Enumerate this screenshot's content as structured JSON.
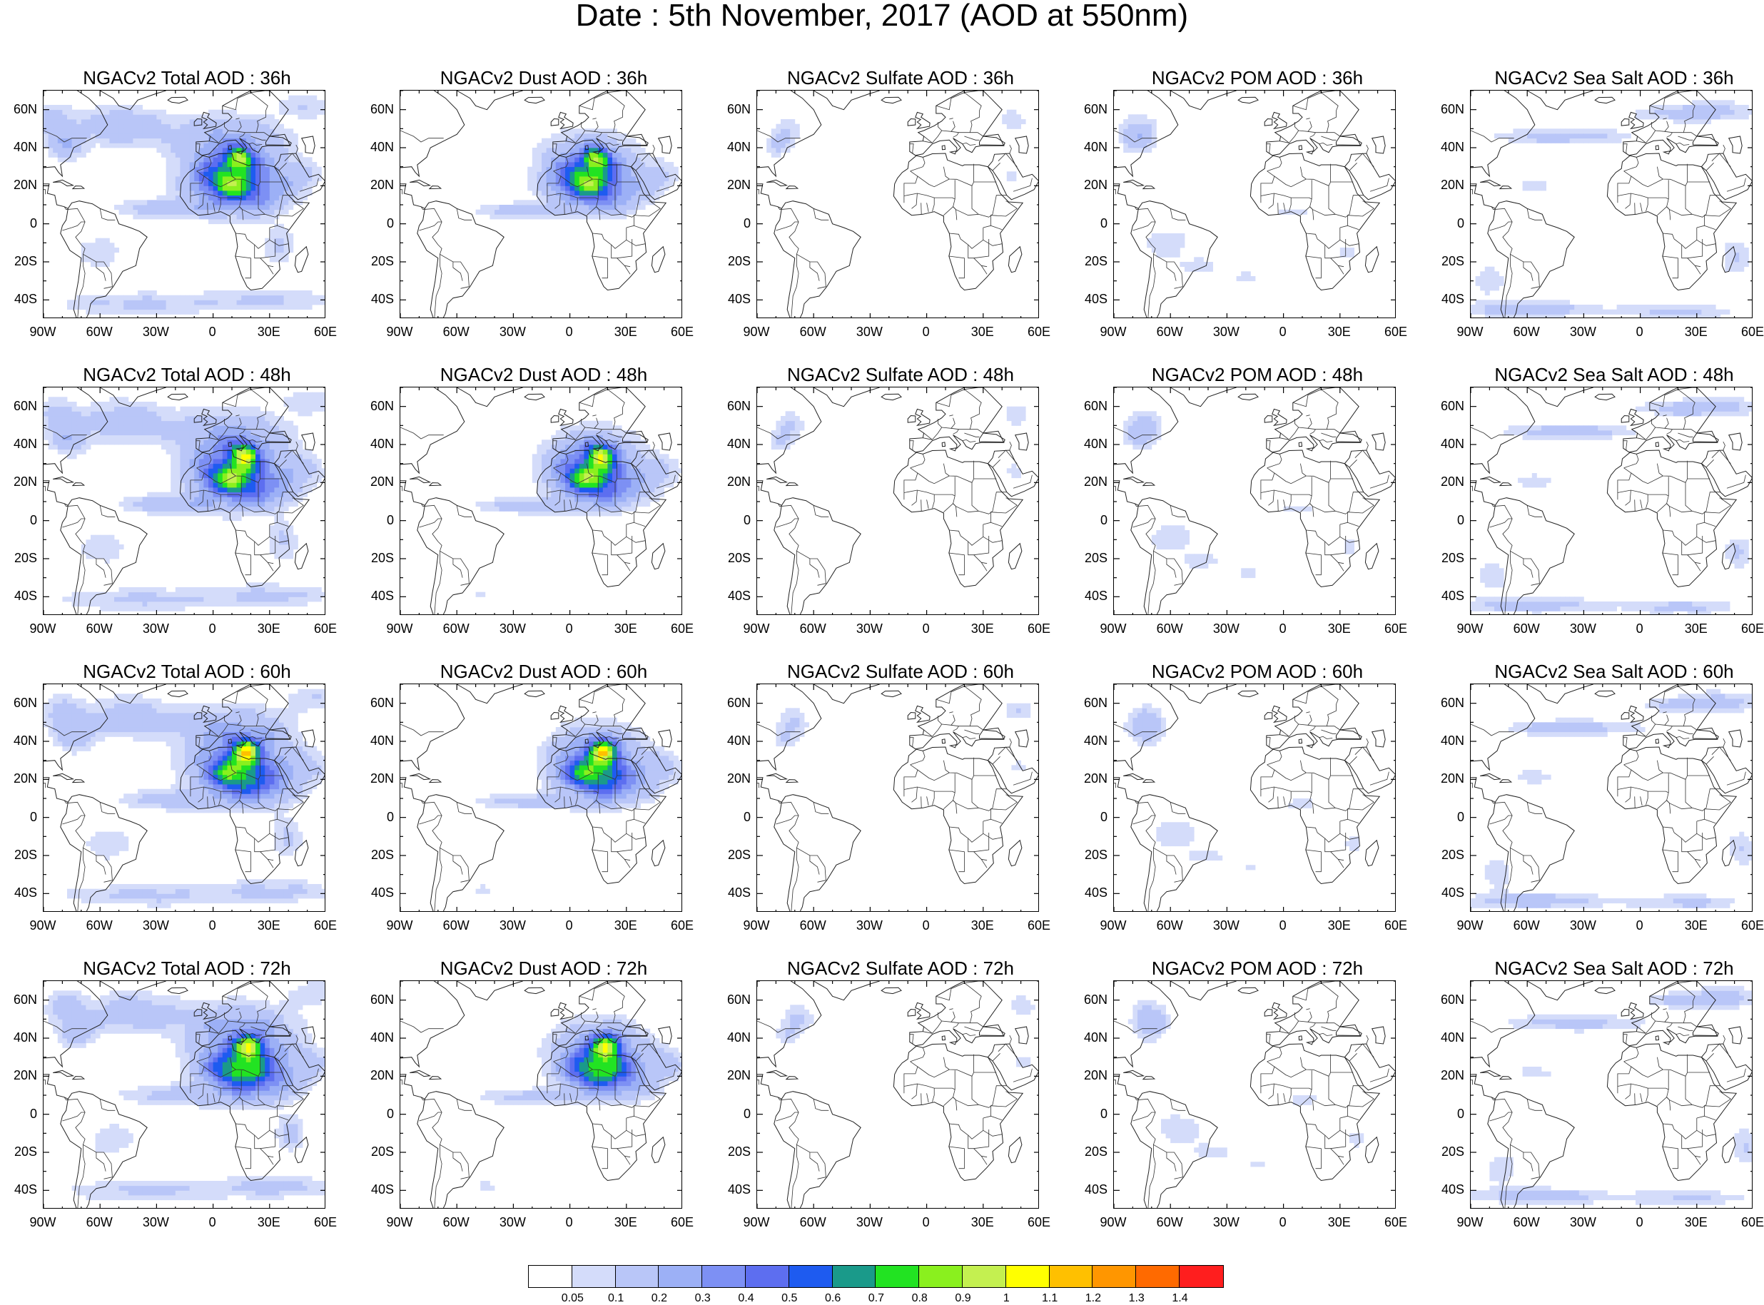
{
  "title": "Date : 5th November, 2017 (AOD at 550nm)",
  "panels": [
    {
      "title": "NGACv2 Total AOD : 36h",
      "species": "total",
      "hour": 36
    },
    {
      "title": "NGACv2 Dust AOD : 36h",
      "species": "dust",
      "hour": 36
    },
    {
      "title": "NGACv2 Sulfate AOD : 36h",
      "species": "sulfate",
      "hour": 36
    },
    {
      "title": "NGACv2 POM AOD : 36h",
      "species": "pom",
      "hour": 36
    },
    {
      "title": "NGACv2 Sea Salt AOD : 36h",
      "species": "seasalt",
      "hour": 36
    },
    {
      "title": "NGACv2 Total AOD : 48h",
      "species": "total",
      "hour": 48
    },
    {
      "title": "NGACv2 Dust AOD : 48h",
      "species": "dust",
      "hour": 48
    },
    {
      "title": "NGACv2 Sulfate AOD : 48h",
      "species": "sulfate",
      "hour": 48
    },
    {
      "title": "NGACv2 POM AOD : 48h",
      "species": "pom",
      "hour": 48
    },
    {
      "title": "NGACv2 Sea Salt AOD : 48h",
      "species": "seasalt",
      "hour": 48
    },
    {
      "title": "NGACv2 Total AOD : 60h",
      "species": "total",
      "hour": 60
    },
    {
      "title": "NGACv2 Dust AOD : 60h",
      "species": "dust",
      "hour": 60
    },
    {
      "title": "NGACv2 Sulfate AOD : 60h",
      "species": "sulfate",
      "hour": 60
    },
    {
      "title": "NGACv2 POM AOD : 60h",
      "species": "pom",
      "hour": 60
    },
    {
      "title": "NGACv2 Sea Salt AOD : 60h",
      "species": "seasalt",
      "hour": 60
    },
    {
      "title": "NGACv2 Total AOD : 72h",
      "species": "total",
      "hour": 72
    },
    {
      "title": "NGACv2 Dust AOD : 72h",
      "species": "dust",
      "hour": 72
    },
    {
      "title": "NGACv2 Sulfate AOD : 72h",
      "species": "sulfate",
      "hour": 72
    },
    {
      "title": "NGACv2 POM AOD : 72h",
      "species": "pom",
      "hour": 72
    },
    {
      "title": "NGACv2 Sea Salt  AOD : 72h",
      "species": "seasalt",
      "hour": 72
    }
  ],
  "lat_labels": [
    "60N",
    "40N",
    "20N",
    "0",
    "20S",
    "40S"
  ],
  "lat_values": [
    60,
    40,
    20,
    0,
    -20,
    -40
  ],
  "lon_labels": [
    "90W",
    "60W",
    "30W",
    "0",
    "30E",
    "60E"
  ],
  "lon_values": [
    -90,
    -60,
    -30,
    0,
    30,
    60
  ],
  "map_extent": {
    "lon_min": -90,
    "lon_max": 60,
    "lat_min": -50,
    "lat_max": 70
  },
  "colorbar": {
    "levels": [
      "0.05",
      "0.1",
      "0.2",
      "0.3",
      "0.4",
      "0.5",
      "0.6",
      "0.7",
      "0.8",
      "0.9",
      "1",
      "1.1",
      "1.2",
      "1.3",
      "1.4"
    ],
    "colors": [
      "#ffffff",
      "#d4dcfa",
      "#b9c6f8",
      "#9cb0f6",
      "#7d90f4",
      "#5d6ef0",
      "#1e5bf0",
      "#1a9a8a",
      "#22e322",
      "#8af01e",
      "#c4f050",
      "#ffff00",
      "#ffc000",
      "#ff9600",
      "#ff6a00",
      "#ff1e1e"
    ]
  }
}
